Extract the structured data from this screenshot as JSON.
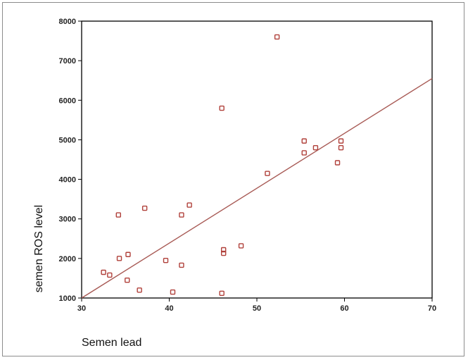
{
  "chart_data": {
    "type": "scatter",
    "xlabel": "Semen lead",
    "ylabel": "semen ROS level",
    "xlim": [
      30,
      70
    ],
    "ylim": [
      1000,
      8000
    ],
    "xticks": [
      30,
      40,
      50,
      60,
      70
    ],
    "yticks": [
      1000,
      2000,
      3000,
      4000,
      5000,
      6000,
      7000,
      8000
    ],
    "grid": false,
    "legend": "none",
    "marker": "hollow-square",
    "colors": {
      "marker": "#b0403a",
      "fit_line": "#a85a55",
      "axes": "#000000"
    },
    "points": [
      {
        "x": 32.5,
        "y": 1650
      },
      {
        "x": 33.2,
        "y": 1580
      },
      {
        "x": 34.2,
        "y": 3100
      },
      {
        "x": 34.3,
        "y": 2000
      },
      {
        "x": 35.2,
        "y": 1450
      },
      {
        "x": 35.3,
        "y": 2100
      },
      {
        "x": 36.6,
        "y": 1200
      },
      {
        "x": 37.2,
        "y": 3270
      },
      {
        "x": 39.6,
        "y": 1950
      },
      {
        "x": 40.4,
        "y": 1150
      },
      {
        "x": 41.4,
        "y": 1830
      },
      {
        "x": 41.4,
        "y": 3100
      },
      {
        "x": 42.3,
        "y": 3350
      },
      {
        "x": 46.0,
        "y": 5800
      },
      {
        "x": 46.0,
        "y": 1120
      },
      {
        "x": 46.2,
        "y": 2220
      },
      {
        "x": 46.2,
        "y": 2130
      },
      {
        "x": 48.2,
        "y": 2320
      },
      {
        "x": 51.2,
        "y": 4150
      },
      {
        "x": 52.3,
        "y": 7600
      },
      {
        "x": 55.4,
        "y": 4970
      },
      {
        "x": 55.4,
        "y": 4670
      },
      {
        "x": 56.7,
        "y": 4800
      },
      {
        "x": 59.2,
        "y": 4420
      },
      {
        "x": 59.6,
        "y": 4970
      },
      {
        "x": 59.6,
        "y": 4800
      }
    ],
    "fit_line": {
      "x": [
        30,
        70
      ],
      "y": [
        1000,
        6550
      ]
    }
  }
}
